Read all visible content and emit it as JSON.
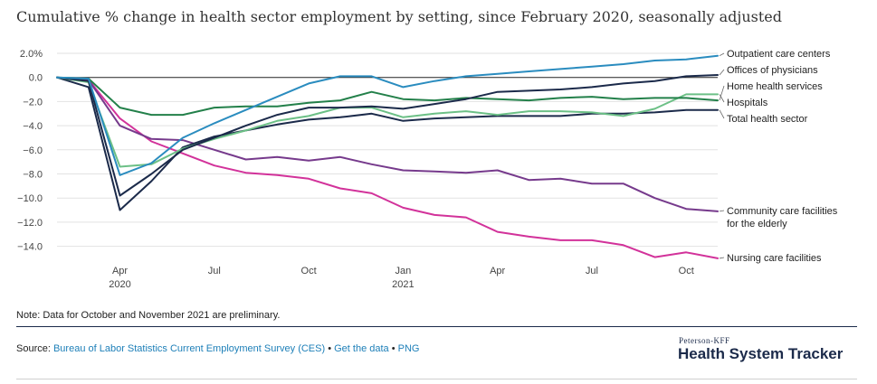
{
  "title": "Cumulative % change in health sector employment by setting, since February 2020, seasonally adjusted",
  "note": "Note: Data for October and November 2021 are preliminary.",
  "source": {
    "prefix": "Source: ",
    "link_ces": "Bureau of Labor Statistics Current Employment Survey (CES)",
    "sep1": " • ",
    "link_data": "Get the data",
    "sep2": " • ",
    "link_png": "PNG"
  },
  "brand": {
    "small": "Peterson-KFF",
    "big": "Health System Tracker"
  },
  "chart_data": {
    "type": "line",
    "ylim": [
      -15,
      2.2
    ],
    "yticks": [
      {
        "value": 2,
        "label": "2.0%"
      },
      {
        "value": 0,
        "label": "0.0"
      },
      {
        "value": -2,
        "label": "−2.0"
      },
      {
        "value": -4,
        "label": "−4.0"
      },
      {
        "value": -6,
        "label": "−6.0"
      },
      {
        "value": -8,
        "label": "−8.0"
      },
      {
        "value": -10,
        "label": "−10.0"
      },
      {
        "value": -12,
        "label": "−12.0"
      },
      {
        "value": -14,
        "label": "−14.0"
      }
    ],
    "x": [
      "Feb 2020",
      "Mar 2020",
      "Apr 2020",
      "May 2020",
      "Jun 2020",
      "Jul 2020",
      "Aug 2020",
      "Sep 2020",
      "Oct 2020",
      "Nov 2020",
      "Dec 2020",
      "Jan 2021",
      "Feb 2021",
      "Mar 2021",
      "Apr 2021",
      "May 2021",
      "Jun 2021",
      "Jul 2021",
      "Aug 2021",
      "Sep 2021",
      "Oct 2021",
      "Nov 2021"
    ],
    "xticks": [
      {
        "index": 2,
        "label": "Apr",
        "year": "2020"
      },
      {
        "index": 5,
        "label": "Jul",
        "year": ""
      },
      {
        "index": 8,
        "label": "Oct",
        "year": ""
      },
      {
        "index": 11,
        "label": "Jan",
        "year": "2021"
      },
      {
        "index": 14,
        "label": "Apr",
        "year": ""
      },
      {
        "index": 17,
        "label": "Jul",
        "year": ""
      },
      {
        "index": 20,
        "label": "Oct",
        "year": ""
      }
    ],
    "zero_line": true,
    "grid": true,
    "series": [
      {
        "name": "Outpatient care centers",
        "color": "#2a8cbf",
        "values": [
          0,
          -0.1,
          -8.1,
          -7.1,
          -5.0,
          -3.8,
          -2.7,
          -1.6,
          -0.5,
          0.1,
          0.1,
          -0.8,
          -0.3,
          0.1,
          0.3,
          0.5,
          0.7,
          0.9,
          1.1,
          1.4,
          1.5,
          1.8
        ]
      },
      {
        "name": "Offices of physicians",
        "color": "#1b2a4a",
        "values": [
          0,
          -0.3,
          -9.8,
          -8.0,
          -6.0,
          -5.0,
          -4.0,
          -3.1,
          -2.5,
          -2.5,
          -2.4,
          -2.6,
          -2.2,
          -1.8,
          -1.2,
          -1.1,
          -1.0,
          -0.8,
          -0.5,
          -0.3,
          0.1,
          0.2
        ]
      },
      {
        "name": "Home health services",
        "color": "#23804a",
        "values": [
          0,
          -0.1,
          -2.5,
          -3.1,
          -3.1,
          -2.5,
          -2.4,
          -2.4,
          -2.1,
          -1.9,
          -1.2,
          -1.8,
          -1.9,
          -1.7,
          -1.8,
          -1.9,
          -1.7,
          -1.6,
          -1.8,
          -1.7,
          -1.7,
          -1.9
        ]
      },
      {
        "name": "Hospitals",
        "color": "#6cc086",
        "values": [
          0,
          -0.4,
          -7.4,
          -7.2,
          -5.9,
          -5.1,
          -4.4,
          -3.6,
          -3.2,
          -2.5,
          -2.5,
          -3.3,
          -3.0,
          -2.8,
          -3.1,
          -2.8,
          -2.8,
          -2.9,
          -3.2,
          -2.6,
          -1.4,
          -1.4
        ]
      },
      {
        "name": "Total health sector",
        "color": "#1b2a4a",
        "values": [
          0,
          -0.8,
          -11.0,
          -8.6,
          -5.8,
          -4.9,
          -4.4,
          -3.9,
          -3.5,
          -3.3,
          -3.0,
          -3.6,
          -3.4,
          -3.3,
          -3.2,
          -3.2,
          -3.2,
          -3.0,
          -3.0,
          -2.9,
          -2.7,
          -2.7
        ]
      },
      {
        "name": "Community care facilities for the elderly",
        "color": "#763a8c",
        "values": [
          0,
          -0.2,
          -4.0,
          -5.1,
          -5.2,
          -6.0,
          -6.8,
          -6.6,
          -6.9,
          -6.6,
          -7.2,
          -7.7,
          -7.8,
          -7.9,
          -7.7,
          -8.5,
          -8.4,
          -8.8,
          -8.8,
          -10.0,
          -10.9,
          -11.1
        ]
      },
      {
        "name": "Nursing care facilities",
        "color": "#d2329a",
        "values": [
          0,
          -0.2,
          -3.4,
          -5.3,
          -6.3,
          -7.3,
          -7.9,
          -8.1,
          -8.4,
          -9.2,
          -9.6,
          -10.8,
          -11.4,
          -11.6,
          -12.8,
          -13.2,
          -13.5,
          -13.5,
          -13.9,
          -14.9,
          -14.5,
          -15.0
        ]
      }
    ],
    "legend_labels": [
      {
        "series": "Outpatient care centers",
        "lines": [
          "Outpatient care centers"
        ]
      },
      {
        "series": "Offices of physicians",
        "lines": [
          "Offices of physicians"
        ]
      },
      {
        "series": "Home health services",
        "lines": [
          "Home health services"
        ]
      },
      {
        "series": "Hospitals",
        "lines": [
          "Hospitals"
        ]
      },
      {
        "series": "Total health sector",
        "lines": [
          "Total health sector"
        ]
      },
      {
        "series": "Community care facilities for the elderly",
        "lines": [
          "Community care facilities",
          "for the elderly"
        ]
      },
      {
        "series": "Nursing care facilities",
        "lines": [
          "Nursing care facilities"
        ]
      }
    ]
  }
}
